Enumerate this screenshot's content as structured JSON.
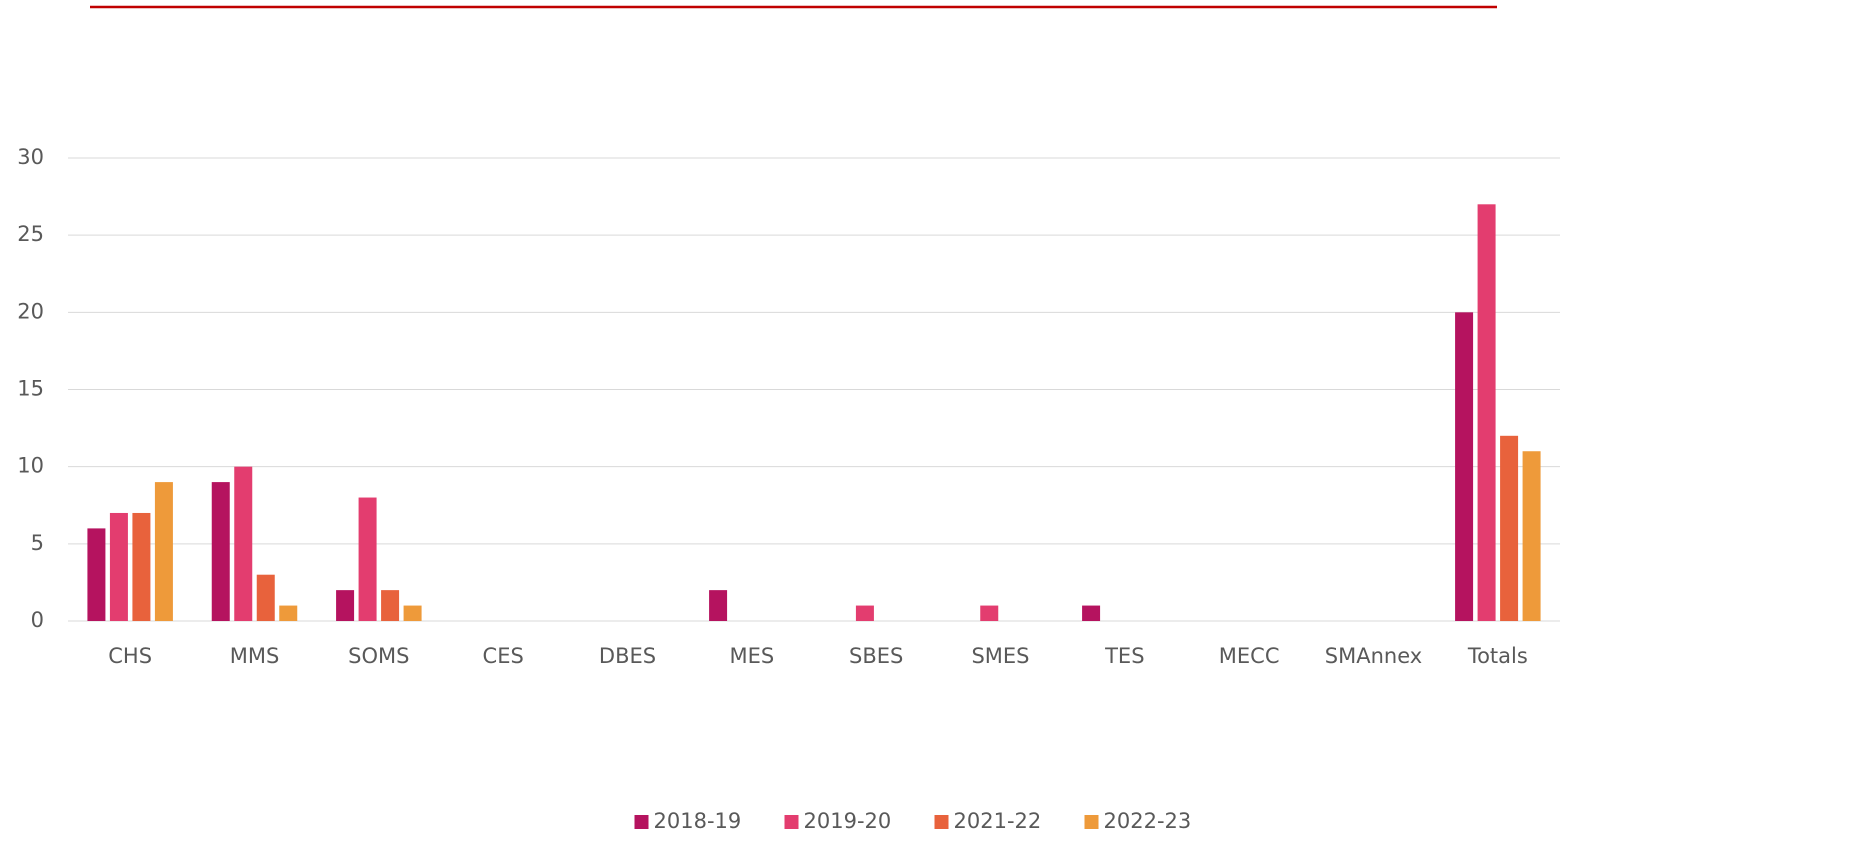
{
  "chart_data": {
    "type": "bar",
    "categories": [
      "CHS",
      "MMS",
      "SOMS",
      "CES",
      "DBES",
      "MES",
      "SBES",
      "SMES",
      "TES",
      "MECC",
      "SMAnnex",
      "Totals"
    ],
    "series": [
      {
        "name": "2018-19",
        "color": "#b5135f",
        "values": [
          6,
          9,
          2,
          0,
          0,
          2,
          0,
          0,
          1,
          0,
          0,
          20
        ]
      },
      {
        "name": "2019-20",
        "color": "#e33d6f",
        "values": [
          7,
          10,
          8,
          0,
          0,
          0,
          1,
          1,
          0,
          0,
          0,
          27
        ]
      },
      {
        "name": "2021-22",
        "color": "#e8623c",
        "values": [
          7,
          3,
          2,
          0,
          0,
          0,
          0,
          0,
          0,
          0,
          0,
          12
        ]
      },
      {
        "name": "2022-23",
        "color": "#ee9a3a",
        "values": [
          9,
          1,
          1,
          0,
          0,
          0,
          0,
          0,
          0,
          0,
          0,
          11
        ]
      }
    ],
    "ylim": [
      0,
      30
    ],
    "yticks": [
      0,
      5,
      10,
      15,
      20,
      25,
      30
    ],
    "grid": true,
    "legend": "bottom"
  }
}
